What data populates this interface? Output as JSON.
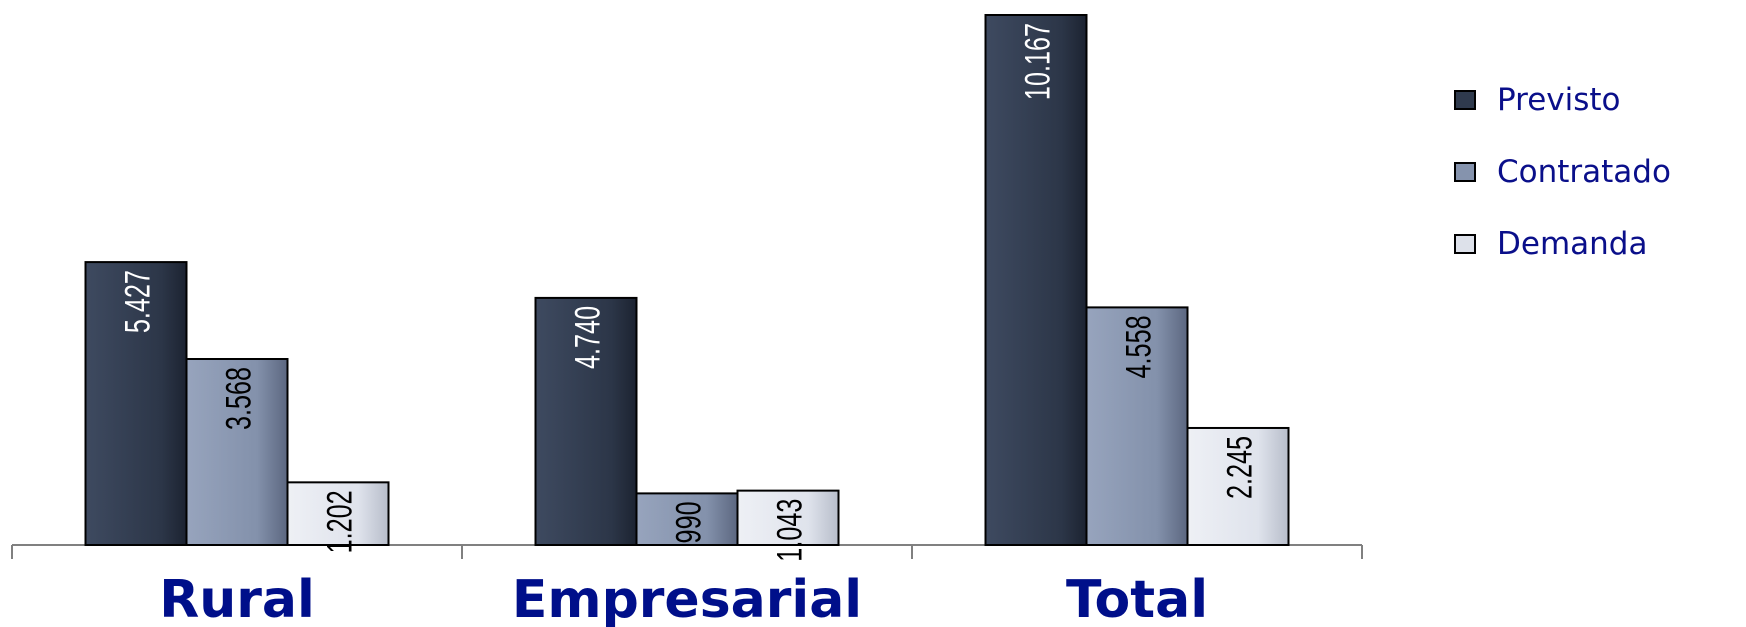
{
  "chart_data": {
    "type": "bar",
    "categories": [
      "Rural",
      "Empresarial",
      "Total"
    ],
    "series": [
      {
        "name": "Previsto",
        "values": [
          5427,
          4740,
          10167
        ],
        "labels": [
          "5.427",
          "4.740",
          "10.167"
        ],
        "color": "#2f3a4d",
        "label_color": "#ffffff"
      },
      {
        "name": "Contratado",
        "values": [
          3568,
          990,
          4558
        ],
        "labels": [
          "3.568",
          "990",
          "4.558"
        ],
        "color": "#8593ad",
        "label_color": "#000000"
      },
      {
        "name": "Demanda",
        "values": [
          1202,
          1043,
          2245
        ],
        "labels": [
          "1.202",
          "1.043",
          "2.245"
        ],
        "color": "#dde1ea",
        "label_color": "#000000"
      }
    ],
    "ylim": [
      0,
      10167
    ],
    "grid": false,
    "legend_position": "right"
  }
}
